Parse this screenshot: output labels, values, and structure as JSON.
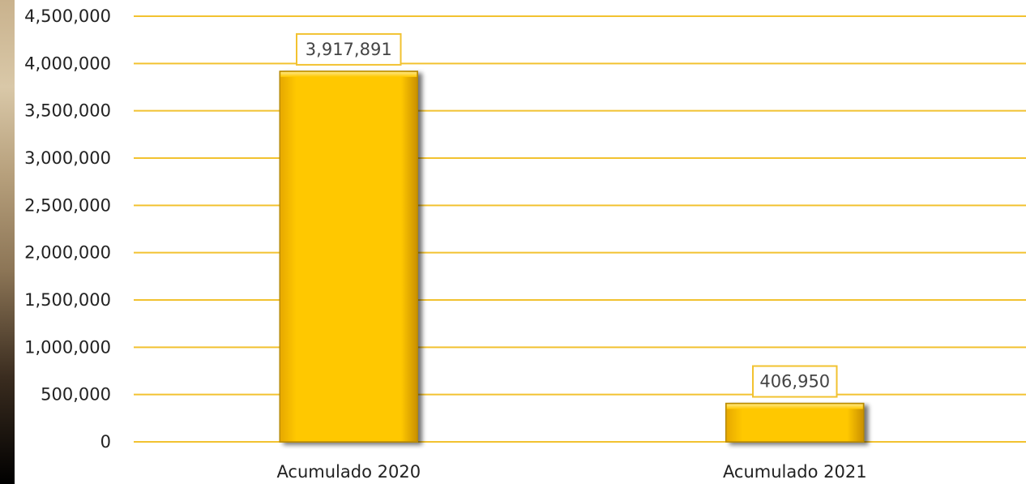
{
  "chart_data": {
    "type": "bar",
    "categories": [
      "Acumulado 2020",
      "Acumulado 2021"
    ],
    "values": [
      3917891,
      406950
    ],
    "data_labels": [
      "3,917,891",
      "406,950"
    ],
    "y_ticks": [
      "0",
      "500,000",
      "1,000,000",
      "1,500,000",
      "2,000,000",
      "2,500,000",
      "3,000,000",
      "3,500,000",
      "4,000,000",
      "4,500,000"
    ],
    "ylim": [
      0,
      4500000
    ],
    "grid": true,
    "legend": "none",
    "title": "",
    "xlabel": "",
    "ylabel": "",
    "colors": {
      "bar": "#FFC800",
      "bar_edge": "#B88A00",
      "gridline": "#F2C230",
      "label_border": "#F2C230"
    }
  }
}
